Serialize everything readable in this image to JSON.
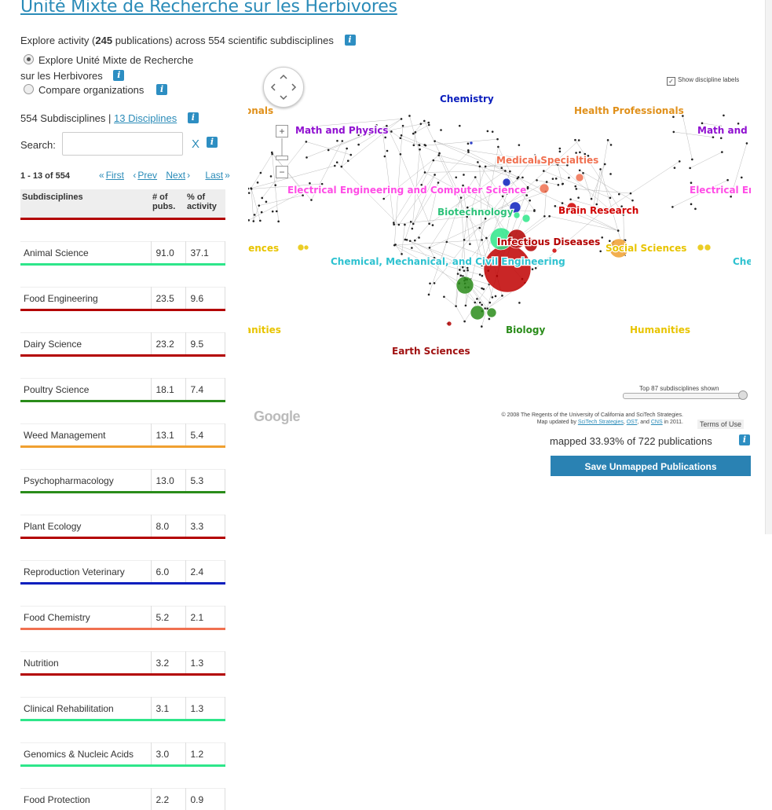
{
  "page": {
    "title": "Unité Mixte de Recherche sur les Herbivores",
    "explore_prefix": "Explore activity (",
    "publication_count": "245",
    "explore_suffix": " publications) across 554 scientific subdisciplines",
    "radio_explore_line1": "Explore Unité Mixte de Recherche",
    "radio_explore_line2": "sur les Herbivores",
    "radio_compare": "Compare organizations",
    "subdisciplines_count": "554 Subdisciplines",
    "separator": " | ",
    "disciplines_link": "13 Disciplines",
    "search_label": "Search:",
    "search_value": "",
    "search_clear": "X",
    "info_glyph": "i"
  },
  "pager": {
    "count": "1 - 13 of 554",
    "first": "First",
    "prev": "Prev",
    "next": "Next",
    "last": "Last",
    "first_arrow": "«",
    "prev_arrow": "‹",
    "next_arrow": "›",
    "last_arrow": "»"
  },
  "table": {
    "headers": {
      "name": "Subdisciplines",
      "pubs_line1": "# of",
      "pubs_line2": "pubs.",
      "pct_line1": "% of",
      "pct_line2": "activity"
    },
    "rows": [
      {
        "name": "Animal Science",
        "pubs": "91.0",
        "pct": "37.1",
        "color": "#b30000"
      },
      {
        "name": "Food Engineering",
        "pubs": "23.5",
        "pct": "9.6",
        "color": "#2ee68a"
      },
      {
        "name": "Dairy Science",
        "pubs": "23.2",
        "pct": "9.5",
        "color": "#b30000"
      },
      {
        "name": "Poultry Science",
        "pubs": "18.1",
        "pct": "7.4",
        "color": "#b30000"
      },
      {
        "name": "Weed Management",
        "pubs": "13.1",
        "pct": "5.4",
        "color": "#2a8c1a"
      },
      {
        "name": "Psychopharmacology",
        "pubs": "13.0",
        "pct": "5.3",
        "color": "#f0a030"
      },
      {
        "name": "Plant Ecology",
        "pubs": "8.0",
        "pct": "3.3",
        "color": "#2a8c1a"
      },
      {
        "name": "Reproduction Veterinary",
        "pubs": "6.0",
        "pct": "2.4",
        "color": "#b30000"
      },
      {
        "name": "Food Chemistry",
        "pubs": "5.2",
        "pct": "2.1",
        "color": "#0a1ebd"
      },
      {
        "name": "Nutrition",
        "pubs": "3.2",
        "pct": "1.3",
        "color": "#f07050"
      },
      {
        "name": "Clinical Rehabilitation",
        "pubs": "3.1",
        "pct": "1.3",
        "color": "#b30000"
      },
      {
        "name": "Genomics & Nucleic Acids",
        "pubs": "3.0",
        "pct": "1.2",
        "color": "#2ee68a"
      },
      {
        "name": "Food Protection",
        "pubs": "2.2",
        "pct": "0.9",
        "color": "#2ee68a"
      }
    ]
  },
  "map": {
    "labels": [
      {
        "text": "Chemistry",
        "color": "#0a1ebd"
      },
      {
        "text": "Health Professionals",
        "color": "#e0901a"
      },
      {
        "text": "Math and Physics",
        "color": "#9010d0"
      },
      {
        "text": "Math and P",
        "color": "#9010d0"
      },
      {
        "text": "onals",
        "color": "#e0901a"
      },
      {
        "text": "Medical Specialties",
        "color": "#f07050"
      },
      {
        "text": "Electrical Engineering and Computer Science",
        "color": "#ff4de6"
      },
      {
        "text": "Electrical En",
        "color": "#ff4de6"
      },
      {
        "text": "Biotechnology",
        "color": "#2ec27a"
      },
      {
        "text": "Brain Research",
        "color": "#d00000"
      },
      {
        "text": "iences",
        "color": "#e8c400"
      },
      {
        "text": "Infectious Diseases",
        "color": "#b30000"
      },
      {
        "text": "Social Sciences",
        "color": "#e8c400"
      },
      {
        "text": "Chemical, Mechanical, and Civil Engineering",
        "color": "#2ec2d0"
      },
      {
        "text": "Che",
        "color": "#2ec2d0"
      },
      {
        "text": "anities",
        "color": "#e8c400"
      },
      {
        "text": "Biology",
        "color": "#2a8c1a"
      },
      {
        "text": "Humanities",
        "color": "#e8c400"
      },
      {
        "text": "Earth Sciences",
        "color": "#a01010"
      }
    ],
    "show_labels": "Show discipline labels",
    "zoom_in": "+",
    "zoom_out": "−",
    "slider_label": "Top 87 subdisciplines shown",
    "google": "Google",
    "copyright_line1": "© 2008 The Regents of the University of California and SciTech Strategies.",
    "copyright_line2_a": "Map updated by ",
    "copyright_link1": "SciTech Strategies",
    "copyright_sep1": ", ",
    "copyright_link2": "OST",
    "copyright_sep2": ", and ",
    "copyright_link3": "CNS",
    "copyright_line2_b": " in 2011.",
    "terms": "Terms of Use"
  },
  "footer": {
    "mapped_text": "mapped 33.93% of 722 publications",
    "save_button": "Save Unmapped Publications"
  }
}
